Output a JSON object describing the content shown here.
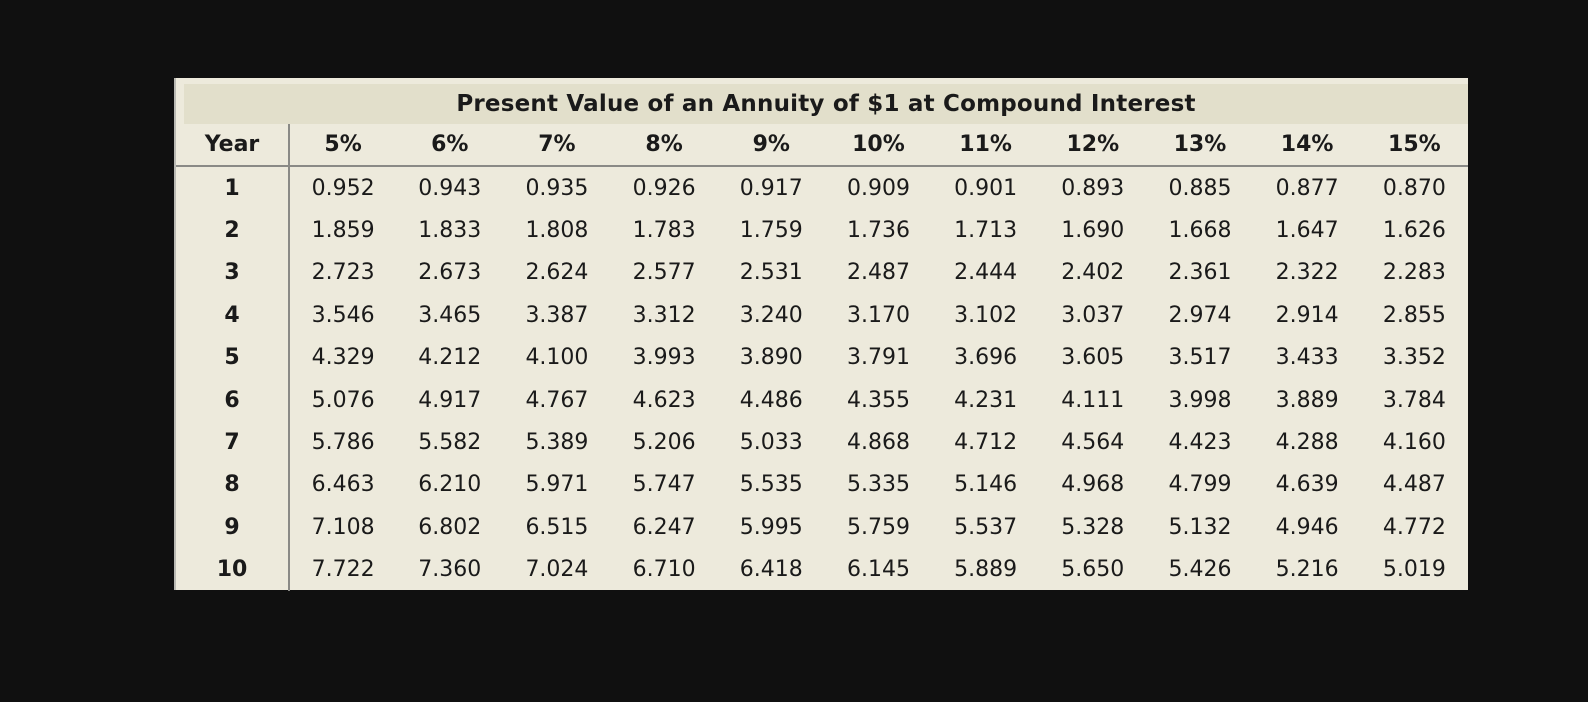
{
  "table": {
    "title": "Present Value of an Annuity of $1 at Compound Interest",
    "columns": [
      "Year",
      "5%",
      "6%",
      "7%",
      "8%",
      "9%",
      "10%",
      "11%",
      "12%",
      "13%",
      "14%",
      "15%"
    ],
    "rows": [
      {
        "year": "1",
        "values": [
          "0.952",
          "0.943",
          "0.935",
          "0.926",
          "0.917",
          "0.909",
          "0.901",
          "0.893",
          "0.885",
          "0.877",
          "0.870"
        ]
      },
      {
        "year": "2",
        "values": [
          "1.859",
          "1.833",
          "1.808",
          "1.783",
          "1.759",
          "1.736",
          "1.713",
          "1.690",
          "1.668",
          "1.647",
          "1.626"
        ]
      },
      {
        "year": "3",
        "values": [
          "2.723",
          "2.673",
          "2.624",
          "2.577",
          "2.531",
          "2.487",
          "2.444",
          "2.402",
          "2.361",
          "2.322",
          "2.283"
        ]
      },
      {
        "year": "4",
        "values": [
          "3.546",
          "3.465",
          "3.387",
          "3.312",
          "3.240",
          "3.170",
          "3.102",
          "3.037",
          "2.974",
          "2.914",
          "2.855"
        ]
      },
      {
        "year": "5",
        "values": [
          "4.329",
          "4.212",
          "4.100",
          "3.993",
          "3.890",
          "3.791",
          "3.696",
          "3.605",
          "3.517",
          "3.433",
          "3.352"
        ]
      },
      {
        "year": "6",
        "values": [
          "5.076",
          "4.917",
          "4.767",
          "4.623",
          "4.486",
          "4.355",
          "4.231",
          "4.111",
          "3.998",
          "3.889",
          "3.784"
        ]
      },
      {
        "year": "7",
        "values": [
          "5.786",
          "5.582",
          "5.389",
          "5.206",
          "5.033",
          "4.868",
          "4.712",
          "4.564",
          "4.423",
          "4.288",
          "4.160"
        ]
      },
      {
        "year": "8",
        "values": [
          "6.463",
          "6.210",
          "5.971",
          "5.747",
          "5.535",
          "5.335",
          "5.146",
          "4.968",
          "4.799",
          "4.639",
          "4.487"
        ]
      },
      {
        "year": "9",
        "values": [
          "7.108",
          "6.802",
          "6.515",
          "6.247",
          "5.995",
          "5.759",
          "5.537",
          "5.328",
          "5.132",
          "4.946",
          "4.772"
        ]
      },
      {
        "year": "10",
        "values": [
          "7.722",
          "7.360",
          "7.024",
          "6.710",
          "6.418",
          "6.145",
          "5.889",
          "5.650",
          "5.426",
          "5.216",
          "5.019"
        ]
      }
    ],
    "colors": {
      "page_background": "#101010",
      "table_background": "#edeadc",
      "title_band_background": "#e2dfcb",
      "rule_gray": "#8a8a86",
      "left_border": "#b9b9b3",
      "text": "#1a1a1a"
    }
  }
}
